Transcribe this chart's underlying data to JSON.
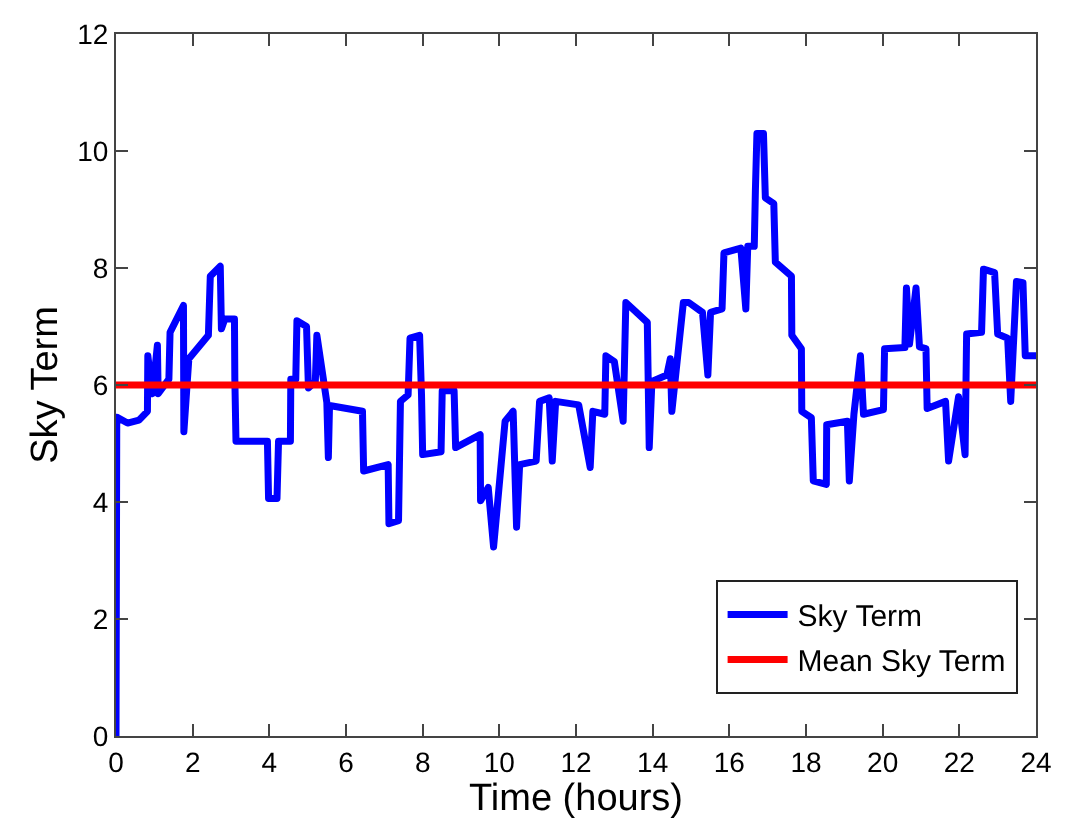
{
  "chart_data": {
    "type": "line",
    "xlabel": "Time (hours)",
    "ylabel": "Sky Term",
    "xlim": [
      0,
      24
    ],
    "xticks": [
      0,
      2,
      4,
      6,
      8,
      10,
      12,
      14,
      16,
      18,
      20,
      22,
      24
    ],
    "ylim": [
      0,
      12
    ],
    "yticks": [
      0,
      2,
      4,
      6,
      8,
      10,
      12
    ],
    "grid": false,
    "legend": "bottom right",
    "marker": "none",
    "line_style": "solid",
    "series": [
      {
        "name": "Sky Term",
        "color": "#0000ff",
        "x": [
          0,
          0.02,
          0.3,
          0.6,
          0.82,
          0.83,
          0.95,
          1.08,
          1.1,
          1.38,
          1.41,
          1.76,
          1.77,
          1.9,
          2.41,
          2.46,
          2.72,
          2.75,
          2.84,
          3.09,
          3.1,
          3.13,
          3.95,
          3.98,
          4.2,
          4.24,
          4.55,
          4.56,
          4.69,
          4.72,
          4.97,
          5.02,
          5.2,
          5.24,
          5.5,
          5.54,
          5.57,
          6.43,
          6.46,
          7.1,
          7.12,
          7.37,
          7.42,
          7.62,
          7.67,
          7.92,
          7.97,
          8.0,
          8.48,
          8.51,
          8.82,
          8.86,
          9.5,
          9.51,
          9.71,
          9.85,
          10.15,
          10.36,
          10.45,
          10.53,
          10.96,
          11.05,
          11.3,
          11.38,
          11.47,
          12.07,
          12.37,
          12.44,
          12.75,
          12.78,
          13.0,
          13.23,
          13.3,
          13.86,
          13.91,
          13.98,
          14.37,
          14.46,
          14.5,
          14.8,
          14.94,
          15.3,
          15.44,
          15.51,
          15.81,
          15.86,
          16.3,
          16.43,
          16.48,
          16.65,
          16.68,
          16.72,
          16.89,
          16.94,
          17.16,
          17.2,
          17.62,
          17.63,
          17.88,
          17.89,
          18.14,
          18.19,
          18.53,
          18.54,
          19.08,
          19.13,
          19.25,
          19.42,
          19.5,
          20.02,
          20.05,
          20.58,
          20.62,
          20.7,
          20.87,
          20.96,
          21.13,
          21.16,
          21.64,
          21.72,
          21.98,
          22.15,
          22.19,
          22.58,
          22.63,
          22.92,
          23.0,
          23.26,
          23.34,
          23.49,
          23.66,
          23.72,
          24.0
        ],
        "values": [
          0,
          5.45,
          5.35,
          5.4,
          5.55,
          6.5,
          5.85,
          6.68,
          5.85,
          6.1,
          6.9,
          7.36,
          5.2,
          6.45,
          6.85,
          7.86,
          8.03,
          6.96,
          7.13,
          7.13,
          6.1,
          5.04,
          5.04,
          4.06,
          4.06,
          5.04,
          5.04,
          6.1,
          6.1,
          7.1,
          7.0,
          5.95,
          6.06,
          6.85,
          5.7,
          4.76,
          5.65,
          5.55,
          4.53,
          4.64,
          3.63,
          3.68,
          5.72,
          5.83,
          6.8,
          6.85,
          5.83,
          4.81,
          4.86,
          5.9,
          5.9,
          4.93,
          5.15,
          4.02,
          4.25,
          3.23,
          5.38,
          5.55,
          3.57,
          4.64,
          4.7,
          5.72,
          5.78,
          4.7,
          5.72,
          5.66,
          4.59,
          5.55,
          5.5,
          6.5,
          6.4,
          5.38,
          7.41,
          7.07,
          4.93,
          6.06,
          6.17,
          6.45,
          5.55,
          7.41,
          7.41,
          7.24,
          6.17,
          7.24,
          7.3,
          8.26,
          8.34,
          7.3,
          8.37,
          8.37,
          9.33,
          10.3,
          10.3,
          9.2,
          9.1,
          8.1,
          7.86,
          6.85,
          6.62,
          5.55,
          5.44,
          4.36,
          4.3,
          5.32,
          5.38,
          4.36,
          5.5,
          6.5,
          5.5,
          5.58,
          6.62,
          6.64,
          7.66,
          6.7,
          7.66,
          6.65,
          6.62,
          5.6,
          5.72,
          4.7,
          5.8,
          4.81,
          6.87,
          6.9,
          7.98,
          7.92,
          6.87,
          6.8,
          5.72,
          7.77,
          7.75,
          6.5,
          6.5
        ]
      },
      {
        "name": "Mean Sky Term",
        "color": "#ff0000",
        "x": [
          0,
          24
        ],
        "values": [
          6,
          6
        ]
      }
    ]
  }
}
